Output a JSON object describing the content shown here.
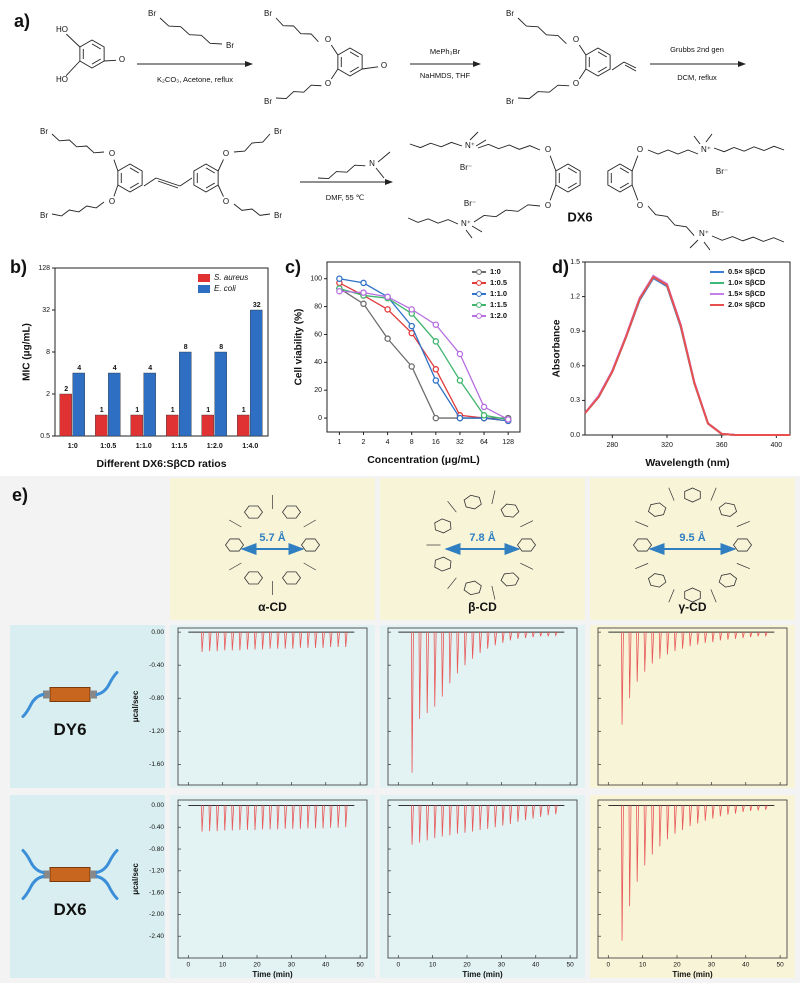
{
  "panel_a": {
    "label": "a)",
    "reagents": [
      "K₂CO₃, Acetone, reflux",
      "MePh₃Br",
      "NaHMDS, THF",
      "Grubbs 2nd gen",
      "DCM, reflux",
      "DMF, 55 ℃"
    ],
    "atoms": [
      "HO",
      "HO",
      "O",
      "Br",
      "Br",
      "Br",
      "O",
      "O",
      "O",
      "Br",
      "Br",
      "O",
      "O",
      "Br",
      "Br",
      "O",
      "O",
      "Br",
      "O",
      "O",
      "Br",
      "Br",
      "N",
      "N⁺",
      "Br⁻",
      "O",
      "O",
      "N⁺",
      "Br⁻",
      "O",
      "O",
      "N⁺",
      "Br⁻",
      "N⁺",
      "Br⁻"
    ],
    "product": "DX6"
  },
  "chart_data": [
    {
      "type": "bar",
      "label": "b)",
      "ylabel": "MIC (μg/mL)",
      "xlabel": "Different DX6:SβCD ratios",
      "categories": [
        "1:0",
        "1:0.5",
        "1:1.0",
        "1:1.5",
        "1:2.0",
        "1:4.0"
      ],
      "series": [
        {
          "name": "S. aureus",
          "color": "#e03232",
          "values": [
            2,
            1,
            1,
            1,
            1,
            1
          ]
        },
        {
          "name": "E. coli",
          "color": "#2e6fc4",
          "values": [
            4,
            4,
            4,
            8,
            8,
            32
          ]
        }
      ],
      "ylim": [
        0.5,
        128
      ],
      "yticks": [
        0.5,
        2,
        8,
        32,
        128
      ],
      "log_scale": "y",
      "legend": "upper left"
    },
    {
      "type": "line",
      "label": "c)",
      "ylabel": "Cell viability (%)",
      "xlabel": "Concentration (μg/mL)",
      "x": [
        1,
        2,
        4,
        8,
        16,
        32,
        64,
        128
      ],
      "series": [
        {
          "name": "1:0",
          "color": "#6e6e6e",
          "values": [
            93,
            82,
            57,
            37,
            0,
            0,
            0,
            0
          ]
        },
        {
          "name": "1:0.5",
          "color": "#e03a3a",
          "values": [
            97,
            88,
            78,
            61,
            35,
            2,
            0,
            -2
          ]
        },
        {
          "name": "1:1.0",
          "color": "#2f72c8",
          "values": [
            100,
            97,
            87,
            66,
            27,
            0,
            0,
            -2
          ]
        },
        {
          "name": "1:1.5",
          "color": "#3fb56e",
          "values": [
            93,
            88,
            86,
            75,
            55,
            27,
            2,
            -1
          ]
        },
        {
          "name": "1:2.0",
          "color": "#b66ee0",
          "values": [
            91,
            90,
            87,
            78,
            67,
            46,
            8,
            -1
          ]
        }
      ],
      "xlim": [
        0.7,
        180
      ],
      "xticks": [
        1,
        2,
        4,
        8,
        16,
        32,
        64,
        128
      ],
      "log_scale": "x",
      "ylim": [
        -10,
        112
      ],
      "yticks": [
        0,
        20,
        40,
        60,
        80,
        100
      ],
      "markers": true,
      "legend": "upper right"
    },
    {
      "type": "line",
      "label": "d)",
      "ylabel": "Absorbance",
      "xlabel": "Wavelength (nm)",
      "x": [
        260,
        270,
        280,
        290,
        300,
        310,
        320,
        330,
        340,
        350,
        360,
        370,
        380,
        390,
        400,
        410
      ],
      "series": [
        {
          "name": "0.5× SβCD",
          "color": "#3a7fd4",
          "values": [
            0.19,
            0.33,
            0.55,
            0.85,
            1.17,
            1.36,
            1.29,
            0.94,
            0.45,
            0.1,
            0.01,
            0,
            0,
            0,
            0,
            0
          ]
        },
        {
          "name": "1.0× SβCD",
          "color": "#3cb878",
          "values": [
            0.19,
            0.33,
            0.55,
            0.85,
            1.18,
            1.37,
            1.3,
            0.95,
            0.45,
            0.1,
            0.01,
            0,
            0,
            0,
            0,
            0
          ]
        },
        {
          "name": "1.5× SβCD",
          "color": "#c47fe8",
          "values": [
            0.19,
            0.34,
            0.56,
            0.86,
            1.19,
            1.38,
            1.31,
            0.96,
            0.46,
            0.1,
            0.01,
            0,
            0,
            0,
            0,
            0
          ]
        },
        {
          "name": "2.0× SβCD",
          "color": "#e85050",
          "values": [
            0.19,
            0.33,
            0.55,
            0.85,
            1.18,
            1.37,
            1.3,
            0.95,
            0.45,
            0.1,
            0.01,
            0,
            0,
            0,
            0,
            0
          ]
        }
      ],
      "xlim": [
        260,
        410
      ],
      "xticks": [
        280,
        320,
        360,
        400
      ],
      "ylim": [
        0,
        1.5
      ],
      "yticks": [
        {
          "value": 0,
          "label": "0.0"
        },
        0.3,
        0.6,
        0.9,
        1.2,
        1.5
      ],
      "legend": "upper right"
    }
  ],
  "panel_e": {
    "label": "e)",
    "hosts": [
      {
        "name": "α-CD",
        "cavity": "5.7 Å"
      },
      {
        "name": "β-CD",
        "cavity": "7.8 Å"
      },
      {
        "name": "γ-CD",
        "cavity": "9.5 Å"
      }
    ],
    "guests": [
      "DY6",
      "DX6"
    ],
    "itc": {
      "ylabel": "μcal/sec",
      "xlabel": "Time (min)",
      "color": "#e85a5a",
      "xlim": [
        -3,
        52
      ],
      "xticks": [
        0,
        10,
        20,
        30,
        40,
        50
      ],
      "injection_times": [
        4,
        6.2,
        8.4,
        10.6,
        12.8,
        15,
        17.2,
        19.4,
        21.6,
        23.8,
        26,
        28.2,
        30.4,
        32.6,
        34.8,
        37,
        39.2,
        41.4,
        43.6,
        45.8
      ],
      "rows": [
        {
          "ylim": [
            -1.85,
            0.05
          ],
          "yticks": [
            {
              "value": 0,
              "label": "0.00"
            },
            {
              "value": -0.4,
              "label": "-0.40"
            },
            {
              "value": -0.8,
              "label": "-0.80"
            },
            {
              "value": -1.2,
              "label": "-1.20"
            },
            {
              "value": -1.6,
              "label": "-1.60"
            }
          ],
          "peaks": [
            [
              -0.24,
              -0.23,
              -0.23,
              -0.22,
              -0.22,
              -0.22,
              -0.21,
              -0.21,
              -0.21,
              -0.2,
              -0.2,
              -0.2,
              -0.2,
              -0.19,
              -0.19,
              -0.19,
              -0.19,
              -0.18,
              -0.18,
              -0.18
            ],
            [
              -1.7,
              -1.05,
              -0.98,
              -0.9,
              -0.78,
              -0.62,
              -0.5,
              -0.4,
              -0.32,
              -0.25,
              -0.2,
              -0.16,
              -0.13,
              -0.1,
              -0.08,
              -0.07,
              -0.06,
              -0.05,
              -0.05,
              -0.04
            ],
            [
              -1.12,
              -0.8,
              -0.6,
              -0.48,
              -0.38,
              -0.32,
              -0.27,
              -0.23,
              -0.2,
              -0.17,
              -0.15,
              -0.13,
              -0.12,
              -0.1,
              -0.09,
              -0.08,
              -0.07,
              -0.06,
              -0.05,
              -0.05
            ]
          ]
        },
        {
          "ylim": [
            -2.8,
            0.1
          ],
          "yticks": [
            {
              "value": 0,
              "label": "0.00"
            },
            {
              "value": -0.4,
              "label": "-0.40"
            },
            {
              "value": -0.8,
              "label": "-0.80"
            },
            {
              "value": -1.2,
              "label": "-1.20"
            },
            {
              "value": -1.6,
              "label": "-1.60"
            },
            {
              "value": -2,
              "label": "-2.00"
            },
            {
              "value": -2.4,
              "label": "-2.40"
            }
          ],
          "peaks": [
            [
              -0.48,
              -0.47,
              -0.47,
              -0.46,
              -0.46,
              -0.45,
              -0.45,
              -0.45,
              -0.44,
              -0.44,
              -0.44,
              -0.43,
              -0.43,
              -0.43,
              -0.42,
              -0.42,
              -0.42,
              -0.41,
              -0.41,
              -0.4
            ],
            [
              -0.72,
              -0.68,
              -0.64,
              -0.6,
              -0.57,
              -0.55,
              -0.52,
              -0.5,
              -0.48,
              -0.45,
              -0.43,
              -0.4,
              -0.37,
              -0.34,
              -0.3,
              -0.27,
              -0.24,
              -0.21,
              -0.18,
              -0.16
            ],
            [
              -2.48,
              -1.85,
              -1.4,
              -1.1,
              -0.9,
              -0.75,
              -0.62,
              -0.52,
              -0.45,
              -0.38,
              -0.33,
              -0.28,
              -0.24,
              -0.2,
              -0.17,
              -0.15,
              -0.12,
              -0.1,
              -0.09,
              -0.08
            ]
          ]
        }
      ]
    }
  }
}
